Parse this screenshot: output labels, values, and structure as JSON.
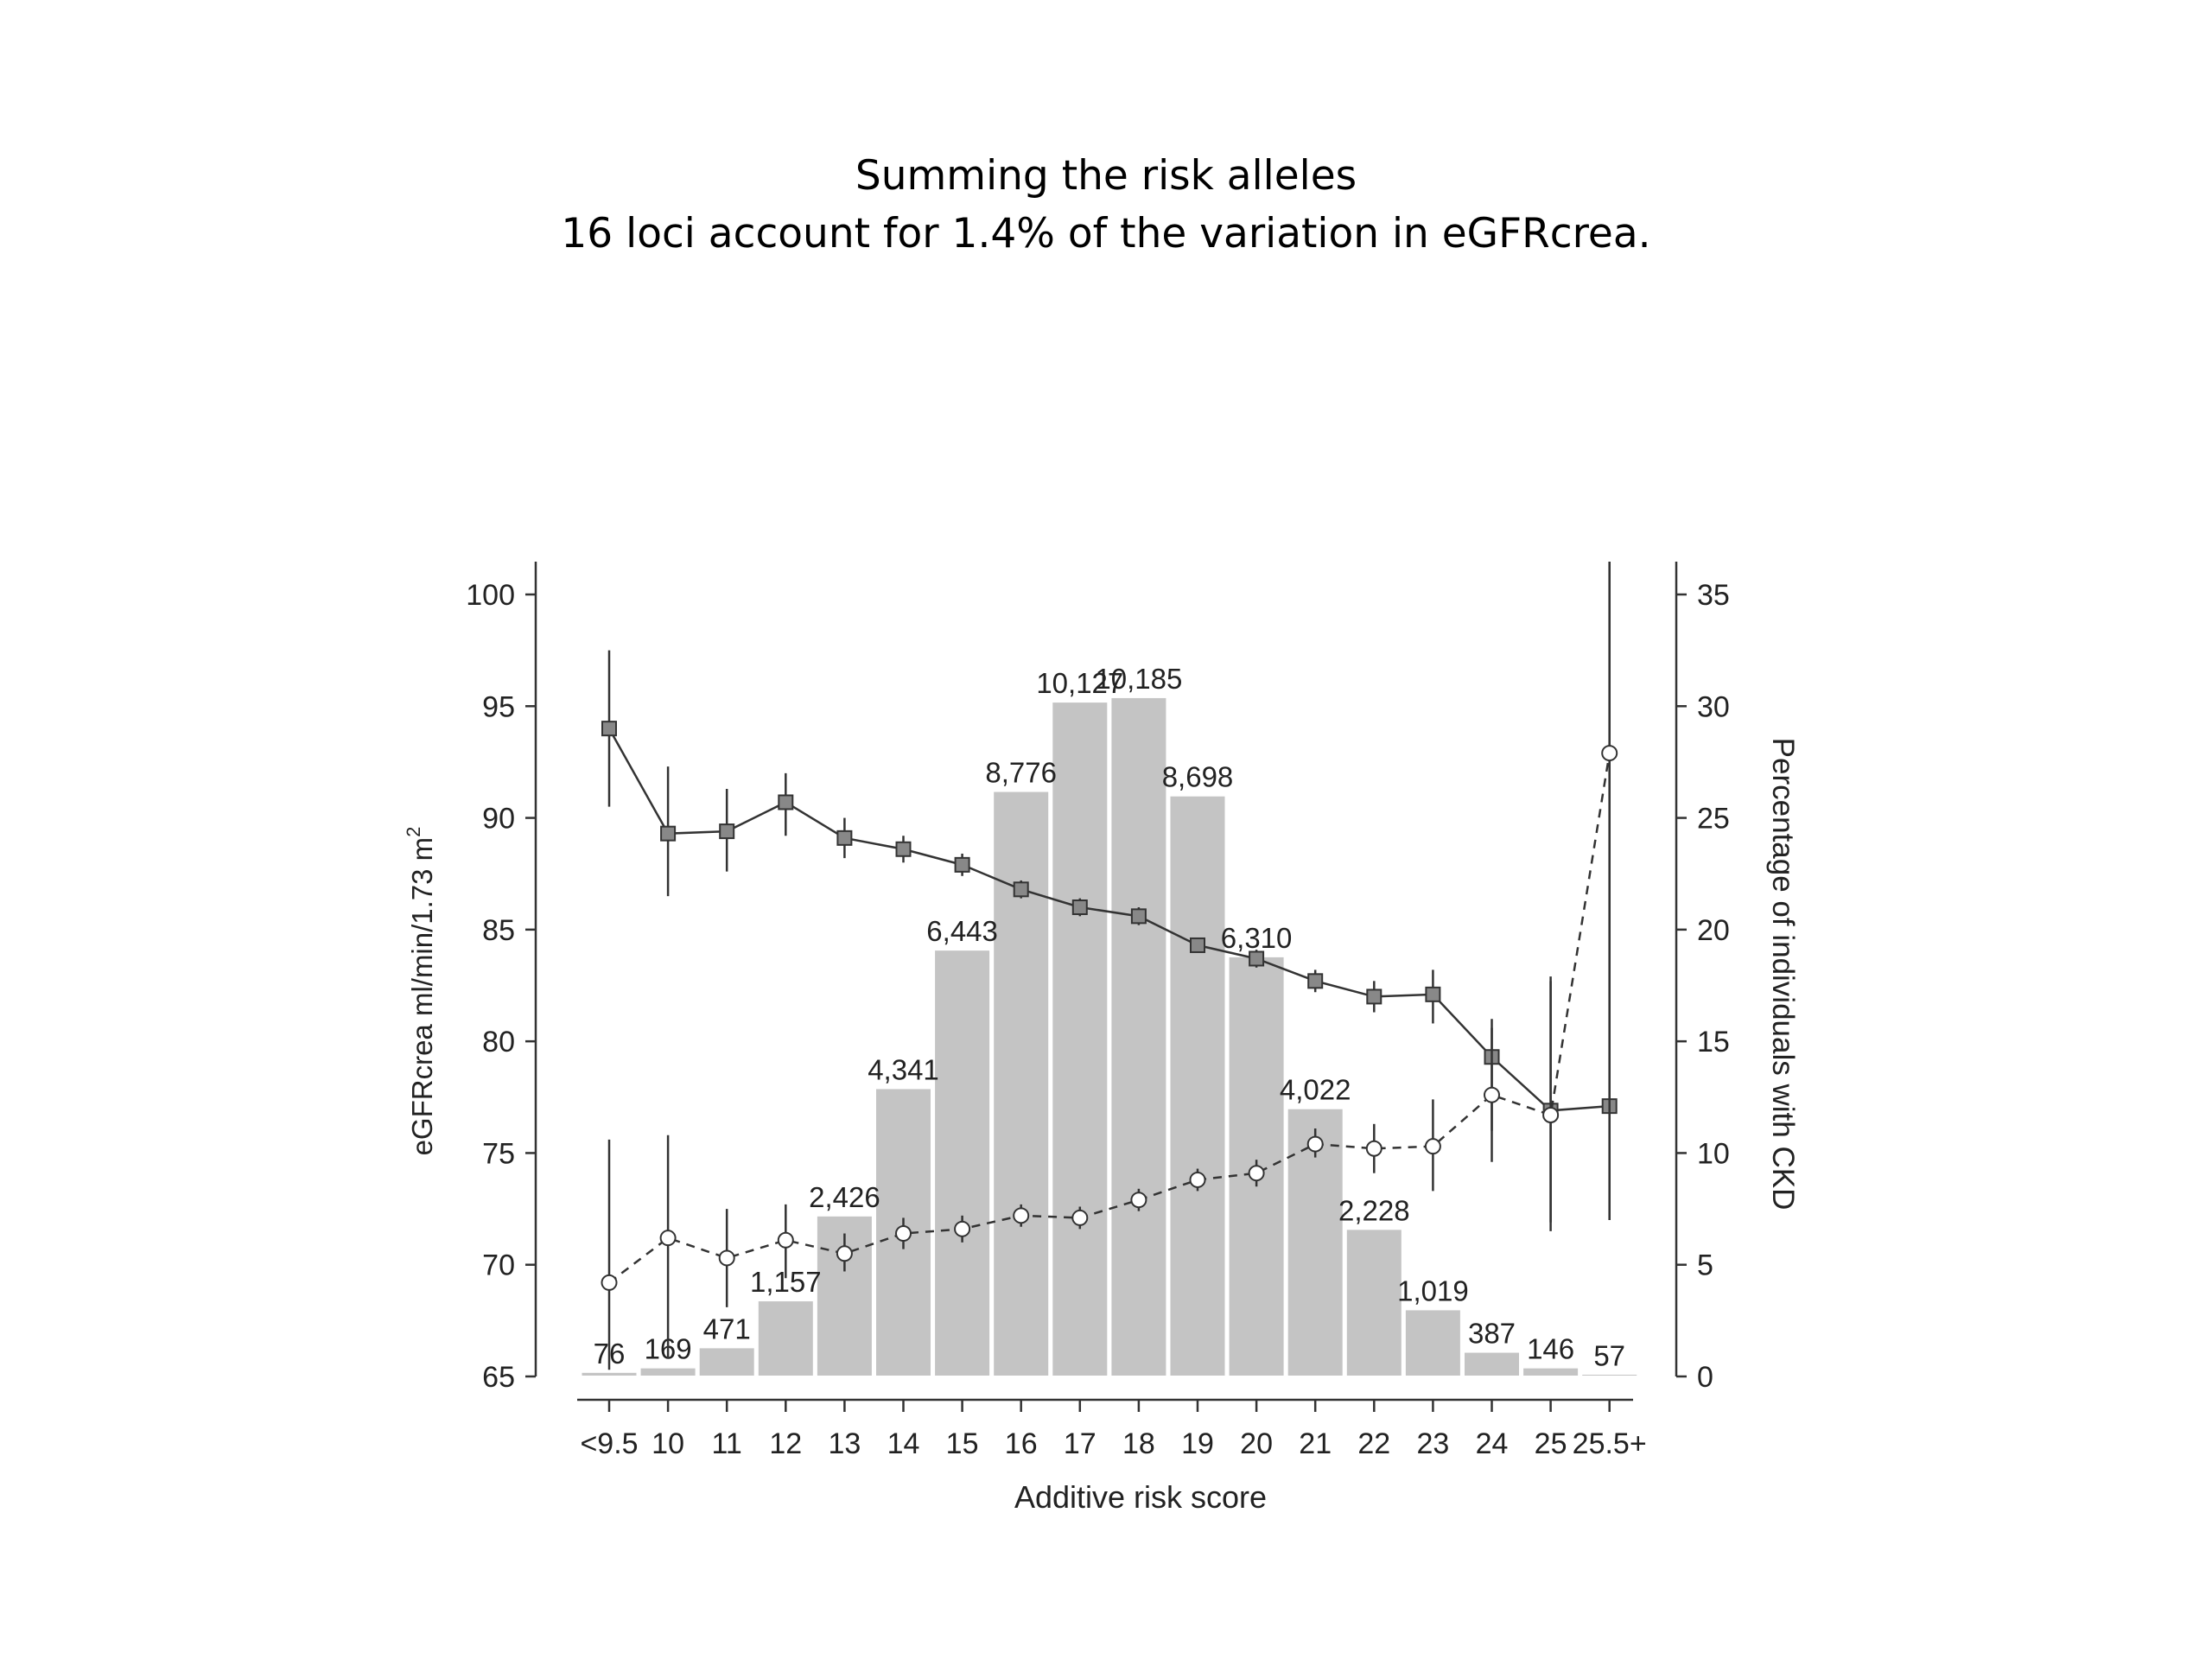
{
  "slide": {
    "title_line1": "Summing the risk alleles",
    "title_line2": "16 loci account for 1.4% of the variation in eGFRcrea."
  },
  "chart_data": {
    "type": "bar",
    "categories": [
      "<9.5",
      "10",
      "11",
      "12",
      "13",
      "14",
      "15",
      "16",
      "17",
      "18",
      "19",
      "20",
      "21",
      "22",
      "23",
      "24",
      "25",
      "25.5+"
    ],
    "xlabel": "Additive risk score",
    "ylabel_left": "eGFRcrea ml/min/1.73 m",
    "ylabel_left_superscript": "2",
    "ylabel_right": "Percentage of individuals with CKD",
    "ylim_left": [
      65,
      100
    ],
    "yticks_left": [
      65,
      70,
      75,
      80,
      85,
      90,
      95,
      100
    ],
    "ylim_right": [
      0,
      35
    ],
    "yticks_right": [
      0,
      5,
      10,
      15,
      20,
      25,
      30,
      35
    ],
    "bars": {
      "axis": "right",
      "values": [
        0.2,
        0.4,
        1.3,
        3.4,
        7.2,
        12.9,
        19.1,
        26.2,
        30.2,
        30.4,
        26.0,
        18.8,
        12.0,
        6.6,
        3.0,
        1.1,
        0.4,
        0.1
      ],
      "labels": [
        "76",
        "169",
        "471",
        "1,157",
        "2,426",
        "4,341",
        "6,443",
        "8,776",
        "10,127",
        "10,185",
        "8,698",
        "6,310",
        "4,022",
        "2,228",
        "1,019",
        "387",
        "146",
        "57"
      ],
      "color": "#c4c4c4"
    },
    "series": [
      {
        "marker": "square",
        "line": "solid",
        "axis": "left",
        "values": [
          94.0,
          89.3,
          89.4,
          90.7,
          89.1,
          88.6,
          87.9,
          86.8,
          86.0,
          85.6,
          84.3,
          83.7,
          82.7,
          82.0,
          82.1,
          79.3,
          76.9,
          77.1
        ],
        "err_low": [
          90.5,
          86.5,
          87.6,
          89.2,
          88.2,
          88.0,
          87.4,
          86.4,
          85.6,
          85.2,
          84.0,
          83.3,
          82.2,
          81.3,
          80.8,
          76.0,
          71.5,
          72.0
        ],
        "err_high": [
          97.5,
          92.3,
          91.3,
          92.0,
          90.0,
          89.2,
          88.4,
          87.2,
          86.4,
          86.0,
          84.6,
          84.1,
          83.2,
          82.7,
          83.2,
          81.0,
          82.9,
          101.5
        ]
      },
      {
        "marker": "circle-open",
        "line": "dashed",
        "axis": "right",
        "values": [
          4.2,
          6.2,
          5.3,
          6.1,
          5.5,
          6.4,
          6.6,
          7.2,
          7.1,
          7.9,
          8.8,
          9.1,
          10.4,
          10.2,
          10.3,
          12.6,
          11.7,
          27.9
        ],
        "err_low": [
          0.3,
          0.8,
          3.1,
          4.4,
          4.7,
          5.7,
          6.0,
          6.7,
          6.6,
          7.4,
          8.3,
          8.5,
          9.8,
          9.1,
          8.3,
          9.6,
          6.9,
          7.0
        ],
        "err_high": [
          10.6,
          10.8,
          7.5,
          7.7,
          6.4,
          7.1,
          7.2,
          7.7,
          7.6,
          8.4,
          9.3,
          9.7,
          11.1,
          11.3,
          12.4,
          15.6,
          17.7,
          36.5
        ]
      }
    ]
  }
}
